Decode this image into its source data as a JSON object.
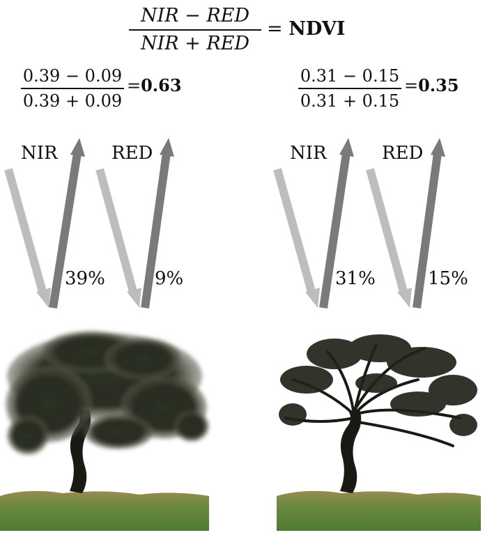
{
  "formula": {
    "numerator": "NIR − RED",
    "denominator": "NIR + RED",
    "equals": "=",
    "result_label": "NDVI"
  },
  "healthy": {
    "numerator": "0.39 − 0.09",
    "denominator": "0.39 + 0.09",
    "equals": "=",
    "ndvi": "0.63",
    "nir_label": "NIR",
    "red_label": "RED",
    "nir_reflectance": "39%",
    "red_reflectance": "9%"
  },
  "stressed": {
    "numerator": "0.31 − 0.15",
    "denominator": "0.31 + 0.15",
    "equals": "=",
    "ndvi": "0.35",
    "nir_label": "NIR",
    "red_label": "RED",
    "nir_reflectance": "31%",
    "red_reflectance": "15%"
  },
  "colors": {
    "incoming_arrow": "#bdbdbd",
    "reflected_arrow": "#7a7a7a",
    "foliage": "#2a2e22",
    "trunk": "#1a1a15",
    "grass": "#5f8a3c",
    "soil": "#8a7a4a"
  }
}
